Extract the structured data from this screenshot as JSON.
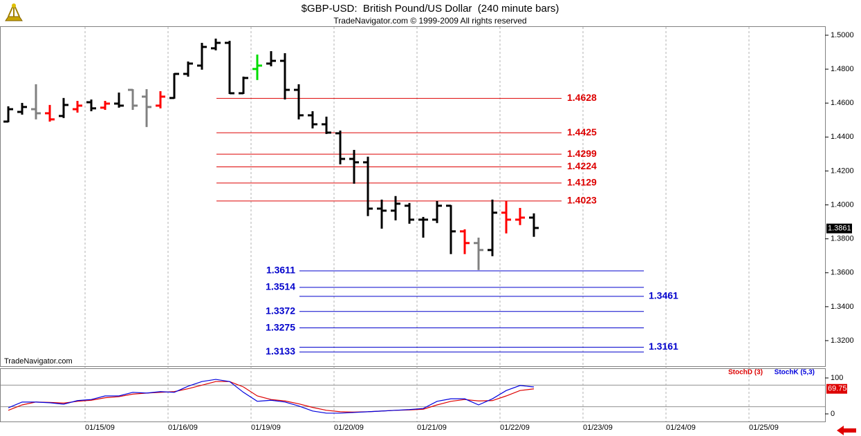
{
  "chart_data": [
    {
      "type": "ohlc",
      "title": "$GBP-USD:  British Pound/US Dollar  (240 minute bars)",
      "subtitle": "TradeNavigator.com © 1999-2009 All rights reserved",
      "watermark": "TradeNavigator.com",
      "x_labels": [
        "01/15/09",
        "01/16/09",
        "01/19/09",
        "01/20/09",
        "01/21/09",
        "01/22/09",
        "01/23/09",
        "01/24/09",
        "01/25/09"
      ],
      "ylim": [
        1.305,
        1.505
      ],
      "yticks": [
        {
          "value": 1.32,
          "label": "1.3200"
        },
        {
          "value": 1.34,
          "label": "1.3400"
        },
        {
          "value": 1.36,
          "label": "1.3600"
        },
        {
          "value": 1.38,
          "label": "1.3800"
        },
        {
          "value": 1.4,
          "label": "1.4000"
        },
        {
          "value": 1.42,
          "label": "1.4200"
        },
        {
          "value": 1.44,
          "label": "1.4400"
        },
        {
          "value": 1.46,
          "label": "1.4600"
        },
        {
          "value": 1.48,
          "label": "1.4800"
        },
        {
          "value": 1.5,
          "label": "1.5000"
        }
      ],
      "open": [
        1.4491,
        1.4548,
        1.4564,
        1.454,
        1.4524,
        1.4564,
        1.4605,
        1.4573,
        1.4597,
        1.4678,
        1.4638,
        1.4585,
        1.463,
        1.4772,
        1.4821,
        1.4923,
        1.4955,
        1.4658,
        1.4801,
        1.4833,
        1.4849,
        1.4678,
        1.4528,
        1.4475,
        1.4422,
        1.4271,
        1.4251,
        1.3978,
        1.3966,
        1.3995,
        1.3913,
        1.3913,
        1.3995,
        1.3844,
        1.3775,
        1.3734,
        1.3954,
        1.3913,
        1.3925
      ],
      "high": [
        1.4577,
        1.4597,
        1.4707,
        1.4585,
        1.4626,
        1.4609,
        1.4617,
        1.4609,
        1.4658,
        1.4678,
        1.4678,
        1.4666,
        1.4772,
        1.4841,
        1.4951,
        1.4976,
        1.4963,
        1.4752,
        1.4882,
        1.4902,
        1.489,
        1.4707,
        1.4548,
        1.4516,
        1.4434,
        1.432,
        1.428,
        1.4027,
        1.4048,
        1.4007,
        1.3925,
        1.4019,
        1.3995,
        1.3852,
        1.3803,
        1.4027,
        1.4019,
        1.3978,
        1.3946
      ],
      "low": [
        1.4491,
        1.4536,
        1.4508,
        1.4495,
        1.4516,
        1.4548,
        1.4556,
        1.4564,
        1.4577,
        1.4564,
        1.4463,
        1.4573,
        1.463,
        1.476,
        1.4801,
        1.4915,
        1.4658,
        1.4658,
        1.474,
        1.4821,
        1.4626,
        1.4508,
        1.4455,
        1.4422,
        1.4243,
        1.4129,
        1.3938,
        1.3864,
        1.3913,
        1.3893,
        1.3811,
        1.3897,
        1.3714,
        1.3714,
        1.362,
        1.3702,
        1.3836,
        1.3885,
        1.3816
      ],
      "close": [
        1.4564,
        1.4577,
        1.454,
        1.4504,
        1.4589,
        1.4585,
        1.4569,
        1.4597,
        1.4585,
        1.4585,
        1.4577,
        1.4638,
        1.4772,
        1.4833,
        1.4931,
        1.4955,
        1.4658,
        1.4748,
        1.4821,
        1.4849,
        1.4678,
        1.4528,
        1.4475,
        1.4426,
        1.4271,
        1.4251,
        1.3978,
        1.3966,
        1.4007,
        1.3913,
        1.3913,
        1.3995,
        1.3844,
        1.3775,
        1.3734,
        1.3954,
        1.3913,
        1.3925,
        1.3864
      ],
      "colors": [
        "#000000",
        "#000000",
        "#808080",
        "#ff0000",
        "#000000",
        "#ff0000",
        "#000000",
        "#ff0000",
        "#000000",
        "#808080",
        "#808080",
        "#ff0000",
        "#000000",
        "#000000",
        "#000000",
        "#000000",
        "#000000",
        "#000000",
        "#00dd00",
        "#000000",
        "#000000",
        "#000000",
        "#000000",
        "#000000",
        "#000000",
        "#000000",
        "#000000",
        "#000000",
        "#000000",
        "#000000",
        "#000000",
        "#000000",
        "#000000",
        "#ff0000",
        "#808080",
        "#000000",
        "#ff0000",
        "#ff0000",
        "#000000"
      ],
      "resistance_levels": [
        1.4628,
        1.4425,
        1.4299,
        1.4224,
        1.4129,
        1.4023
      ],
      "resistance_color": "#dd0000",
      "support_levels_left": [
        1.3611,
        1.3514,
        1.3372,
        1.3275,
        1.3133
      ],
      "support_levels_right": [
        1.3461,
        1.3161
      ],
      "support_color": "#0000cc",
      "last_price": 1.3861
    },
    {
      "type": "line",
      "ylim": [
        0,
        100
      ],
      "yticks": [
        0,
        100
      ],
      "levels": [
        80,
        20
      ],
      "series": [
        {
          "name": "StochD (3)",
          "color": "#dd0000",
          "values": [
            10,
            25,
            33,
            32,
            30,
            35,
            38,
            45,
            48,
            55,
            58,
            60,
            62,
            70,
            80,
            90,
            90,
            75,
            50,
            40,
            36,
            28,
            18,
            10,
            6,
            5,
            6,
            8,
            10,
            11,
            13,
            25,
            35,
            40,
            36,
            37,
            50,
            65,
            69.75
          ]
        },
        {
          "name": "StochK (5,3)",
          "color": "#0000dd",
          "values": [
            17,
            33,
            33,
            31,
            27,
            37,
            40,
            50,
            50,
            60,
            58,
            62,
            60,
            77,
            90,
            96,
            90,
            60,
            35,
            38,
            33,
            22,
            8,
            2,
            2,
            4,
            6,
            8,
            10,
            12,
            15,
            35,
            42,
            42,
            25,
            42,
            65,
            79,
            75
          ]
        }
      ]
    }
  ]
}
